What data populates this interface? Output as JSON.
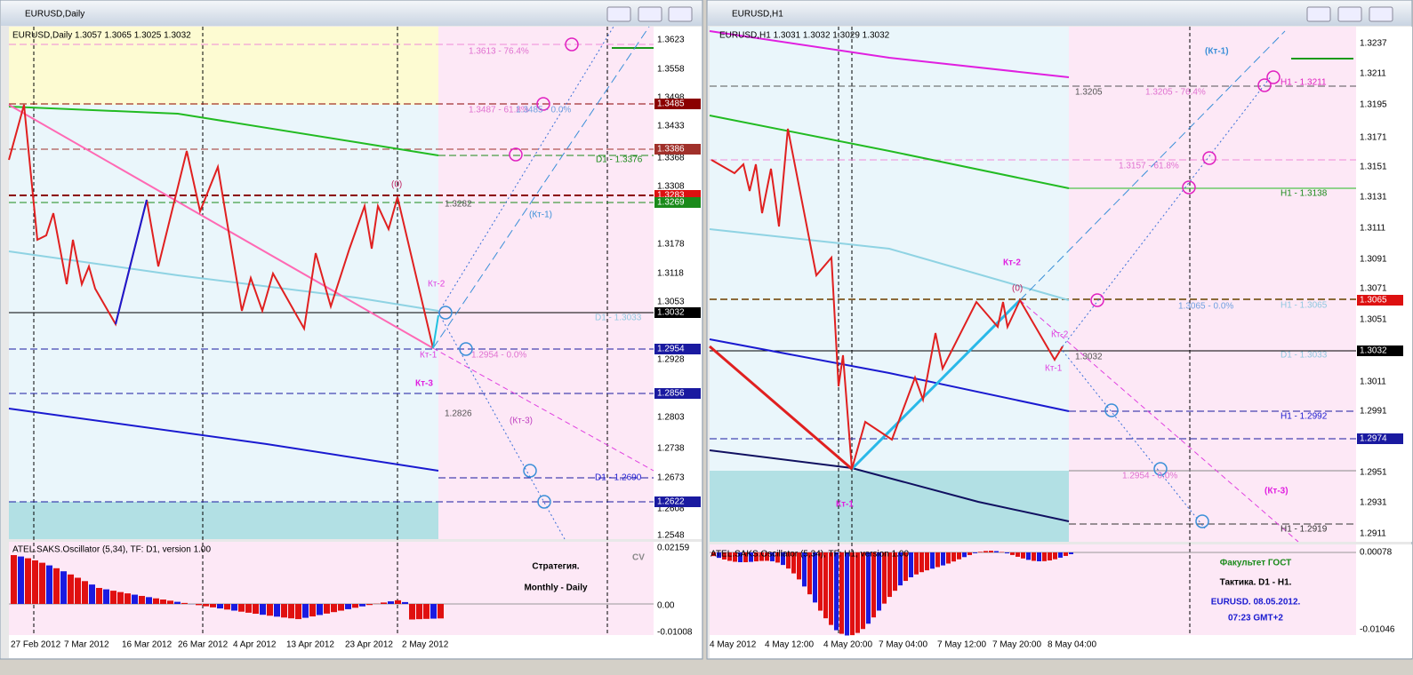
{
  "left": {
    "title": "EURUSD,Daily",
    "info": "EURUSD,Daily  1.3057 1.3065 1.3025 1.3032",
    "prices": [
      "1.3623",
      "1.3558",
      "1.3498",
      "1.3433",
      "1.3368",
      "1.3308",
      "1.3178",
      "1.3118",
      "1.3053",
      "1.2928",
      "1.2803",
      "1.2738",
      "1.2673",
      "1.2608",
      "1.2548"
    ],
    "marked_prices": [
      "1.3485",
      "1.3386",
      "1.3283",
      "1.3269",
      "1.3032",
      "1.2954",
      "1.2856",
      "1.2622"
    ],
    "dates": [
      "27 Feb 2012",
      "7 Mar 2012",
      "16 Mar 2012",
      "26 Mar 2012",
      "4 Apr 2012",
      "13 Apr 2012",
      "23 Apr 2012",
      "2 May 2012"
    ],
    "annotations": [
      "1.3613 - 76.4%",
      "1.3487 - 61.8%",
      "1.3485 - 0.0%",
      "D1 - 1.3376",
      "(0)",
      "1.3282",
      "(Кт-1)",
      "Кт-2",
      "D1 - 1.3033",
      "Кт-1",
      "1.2954 - 0.0%",
      "Кт-3",
      "1.2826",
      "(Кт-3)",
      "D1 - 1.2690"
    ],
    "oscillator": "ATEL.SAKS.Oscillator (5,34), TF: D1, version 1.00",
    "osc_scale": [
      "0.02159",
      "0.00",
      "-0.01008"
    ],
    "notes": [
      "CV",
      "Стратегия.",
      "Monthly - Daily"
    ]
  },
  "right": {
    "title": "EURUSD,H1",
    "info": "EURUSD,H1  1.3031 1.3032 1.3029 1.3032",
    "prices": [
      "1.3237",
      "1.3211",
      "1.3195",
      "1.3171",
      "1.3151",
      "1.3131",
      "1.3111",
      "1.3091",
      "1.3071",
      "1.3051",
      "1.3011",
      "1.2991",
      "1.2951",
      "1.2931",
      "1.2911"
    ],
    "marked_prices": [
      "1.3065",
      "1.3032",
      "1.2974"
    ],
    "dates": [
      "4 May 2012",
      "4 May 12:00",
      "4 May 20:00",
      "7 May 04:00",
      "7 May 12:00",
      "7 May 20:00",
      "8 May 04:00"
    ],
    "annotations": [
      "(Кт-1)",
      "1.3205",
      "1.3205 - 76.4%",
      "H1 - 1.3211",
      "1.3157 - 61.8%",
      "H1 - 1.3138",
      "Кт-2",
      "(0)",
      "1.3065 - 0.0%",
      "H1 - 1.3065",
      "Кт-2",
      "Кт-1",
      "1.3032",
      "D1 - 1.3033",
      "H1 - 1.2992",
      "1.2954 - 0.0%",
      "(Кт-3)",
      "Кт-1",
      "H1 - 1.2919"
    ],
    "oscillator": "ATEL.SAKS.Oscillator (5,34), TF: H1, version 1.00",
    "osc_scale": [
      "0.00078",
      "-0.01046"
    ],
    "notes": [
      "Факультет ГОСТ",
      "Тактика. D1 - H1.",
      "EURUSD. 08.05.2012.",
      "07:23  GMT+2"
    ]
  }
}
